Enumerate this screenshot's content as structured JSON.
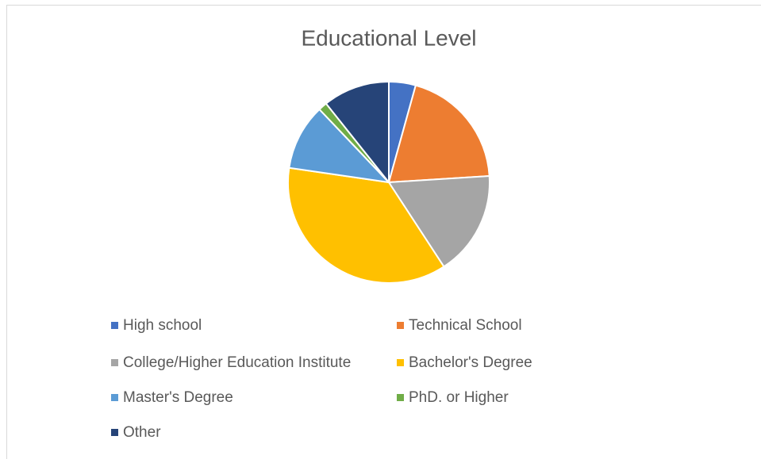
{
  "chart_data": {
    "type": "pie",
    "title": "Educational Level",
    "categories": [
      "High school",
      "Technical School",
      "College/Higher Education Institute",
      "Bachelor's Degree",
      "Master's Degree",
      "PhD. or Higher",
      "Other"
    ],
    "values": [
      4.3,
      19.7,
      16.8,
      36.5,
      10.6,
      1.4,
      10.7
    ],
    "colors": [
      "#4472c4",
      "#ed7d31",
      "#a5a5a5",
      "#ffc000",
      "#5b9bd5",
      "#70ad47",
      "#264478"
    ],
    "legend": "bottom"
  }
}
